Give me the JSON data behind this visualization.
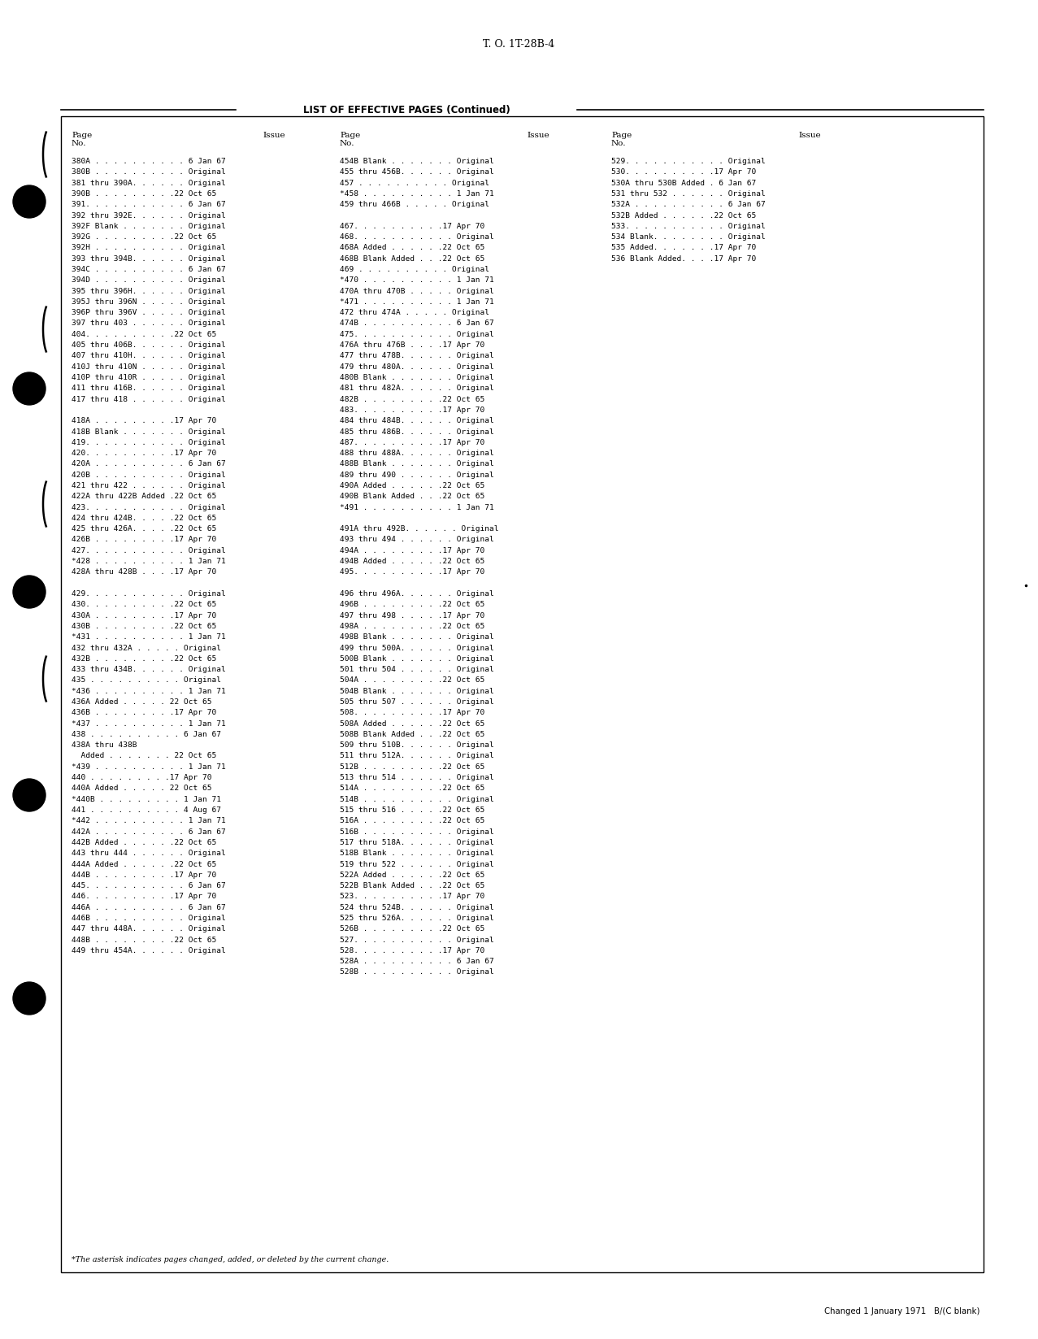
{
  "title_top": "T. O. 1T-28B-4",
  "section_title": "LIST OF EFFECTIVE PAGES (Continued)",
  "footnote": "*The asterisk indicates pages changed, added, or deleted by the current change.",
  "footer": "Changed 1 January 1971   B/(C blank)",
  "col1": [
    "380A . . . . . . . . . . 6 Jan 67",
    "380B . . . . . . . . . . Original",
    "381 thru 390A. . . . . . Original",
    "390B . . . . . . . . .22 Oct 65",
    "391. . . . . . . . . . . 6 Jan 67",
    "392 thru 392E. . . . . . Original",
    "392F Blank . . . . . . . Original",
    "392G . . . . . . . . .22 Oct 65",
    "392H . . . . . . . . . . Original",
    "393 thru 394B. . . . . . Original",
    "394C . . . . . . . . . . 6 Jan 67",
    "394D . . . . . . . . . . Original",
    "395 thru 396H. . . . . . Original",
    "395J thru 396N . . . . . Original",
    "396P thru 396V . . . . . Original",
    "397 thru 403 . . . . . . Original",
    "404. . . . . . . . . .22 Oct 65",
    "405 thru 406B. . . . . . Original",
    "407 thru 410H. . . . . . Original",
    "410J thru 410N . . . . . Original",
    "410P thru 410R . . . . . Original",
    "411 thru 416B. . . . . . Original",
    "417 thru 418 . . . . . . Original",
    "",
    "418A . . . . . . . . .17 Apr 70",
    "418B Blank . . . . . . . Original",
    "419. . . . . . . . . . . Original",
    "420. . . . . . . . . .17 Apr 70",
    "420A . . . . . . . . . . 6 Jan 67",
    "420B . . . . . . . . . . Original",
    "421 thru 422 . . . . . . Original",
    "422A thru 422B Added .22 Oct 65",
    "423. . . . . . . . . . . Original",
    "424 thru 424B. . . . .22 Oct 65",
    "425 thru 426A. . . . .22 Oct 65",
    "426B . . . . . . . . .17 Apr 70",
    "427. . . . . . . . . . . Original",
    "*428 . . . . . . . . . . 1 Jan 71",
    "428A thru 428B . . . .17 Apr 70",
    "",
    "429. . . . . . . . . . . Original",
    "430. . . . . . . . . .22 Oct 65",
    "430A . . . . . . . . .17 Apr 70",
    "430B . . . . . . . . .22 Oct 65",
    "*431 . . . . . . . . . . 1 Jan 71",
    "432 thru 432A . . . . . Original",
    "432B . . . . . . . . .22 Oct 65",
    "433 thru 434B. . . . . . Original",
    "435 . . . . . . . . . . Original",
    "*436 . . . . . . . . . . 1 Jan 71",
    "436A Added . . . . . 22 Oct 65",
    "436B . . . . . . . . .17 Apr 70",
    "*437 . . . . . . . . . . 1 Jan 71",
    "438 . . . . . . . . . . 6 Jan 67",
    "438A thru 438B",
    "  Added . . . . . . . 22 Oct 65",
    "*439 . . . . . . . . . . 1 Jan 71",
    "440 . . . . . . . . .17 Apr 70",
    "440A Added . . . . . 22 Oct 65",
    "*440B . . . . . . . . . 1 Jan 71",
    "441 . . . . . . . . . . 4 Aug 67",
    "*442 . . . . . . . . . . 1 Jan 71",
    "442A . . . . . . . . . . 6 Jan 67",
    "442B Added . . . . . .22 Oct 65",
    "443 thru 444 . . . . . . Original",
    "444A Added . . . . . .22 Oct 65",
    "444B . . . . . . . . .17 Apr 70",
    "445. . . . . . . . . . . 6 Jan 67",
    "446. . . . . . . . . .17 Apr 70",
    "446A . . . . . . . . . . 6 Jan 67",
    "446B . . . . . . . . . . Original",
    "447 thru 448A. . . . . . Original",
    "448B . . . . . . . . .22 Oct 65",
    "449 thru 454A. . . . . . Original"
  ],
  "col2": [
    "454B Blank . . . . . . . Original",
    "455 thru 456B. . . . . . Original",
    "457 . . . . . . . . . . Original",
    "*458 . . . . . . . . . . 1 Jan 71",
    "459 thru 466B . . . . . Original",
    "",
    "467. . . . . . . . . .17 Apr 70",
    "468. . . . . . . . . . . Original",
    "468A Added . . . . . .22 Oct 65",
    "468B Blank Added . . .22 Oct 65",
    "469 . . . . . . . . . . Original",
    "*470 . . . . . . . . . . 1 Jan 71",
    "470A thru 470B . . . . . Original",
    "*471 . . . . . . . . . . 1 Jan 71",
    "472 thru 474A . . . . . Original",
    "474B . . . . . . . . . . 6 Jan 67",
    "475. . . . . . . . . . . Original",
    "476A thru 476B . . . .17 Apr 70",
    "477 thru 478B. . . . . . Original",
    "479 thru 480A. . . . . . Original",
    "480B Blank . . . . . . . Original",
    "481 thru 482A. . . . . . Original",
    "482B . . . . . . . . .22 Oct 65",
    "483. . . . . . . . . .17 Apr 70",
    "484 thru 484B. . . . . . Original",
    "485 thru 486B. . . . . . Original",
    "487. . . . . . . . . .17 Apr 70",
    "488 thru 488A. . . . . . Original",
    "488B Blank . . . . . . . Original",
    "489 thru 490 . . . . . . Original",
    "490A Added . . . . . .22 Oct 65",
    "490B Blank Added . . .22 Oct 65",
    "*491 . . . . . . . . . . 1 Jan 71",
    "",
    "491A thru 492B. . . . . . Original",
    "493 thru 494 . . . . . . Original",
    "494A . . . . . . . . .17 Apr 70",
    "494B Added . . . . . .22 Oct 65",
    "495. . . . . . . . . .17 Apr 70",
    "",
    "496 thru 496A. . . . . . Original",
    "496B . . . . . . . . .22 Oct 65",
    "497 thru 498 . . . . .17 Apr 70",
    "498A . . . . . . . . .22 Oct 65",
    "498B Blank . . . . . . . Original",
    "499 thru 500A. . . . . . Original",
    "500B Blank . . . . . . . Original",
    "501 thru 504 . . . . . . Original",
    "504A . . . . . . . . .22 Oct 65",
    "504B Blank . . . . . . . Original",
    "505 thru 507 . . . . . . Original",
    "508. . . . . . . . . .17 Apr 70",
    "508A Added . . . . . .22 Oct 65",
    "508B Blank Added . . .22 Oct 65",
    "509 thru 510B. . . . . . Original",
    "511 thru 512A. . . . . . Original",
    "512B . . . . . . . . .22 Oct 65",
    "513 thru 514 . . . . . . Original",
    "514A . . . . . . . . .22 Oct 65",
    "514B . . . . . . . . . . Original",
    "515 thru 516 . . . . .22 Oct 65",
    "516A . . . . . . . . .22 Oct 65",
    "516B . . . . . . . . . . Original",
    "517 thru 518A. . . . . . Original",
    "518B Blank . . . . . . . Original",
    "519 thru 522 . . . . . . Original",
    "522A Added . . . . . .22 Oct 65",
    "522B Blank Added . . .22 Oct 65",
    "523. . . . . . . . . .17 Apr 70",
    "524 thru 524B. . . . . . Original",
    "525 thru 526A. . . . . . Original",
    "526B . . . . . . . . .22 Oct 65",
    "527. . . . . . . . . . . Original",
    "528. . . . . . . . . .17 Apr 70",
    "528A . . . . . . . . . . 6 Jan 67",
    "528B . . . . . . . . . . Original"
  ],
  "col3": [
    "529. . . . . . . . . . . Original",
    "530. . . . . . . . . .17 Apr 70",
    "530A thru 530B Added . 6 Jan 67",
    "531 thru 532 . . . . . . Original",
    "532A . . . . . . . . . . 6 Jan 67",
    "532B Added . . . . . .22 Oct 65",
    "533. . . . . . . . . . . Original",
    "534 Blank. . . . . . . . Original",
    "535 Added. . . . . . .17 Apr 70",
    "536 Blank Added. . . .17 Apr 70"
  ],
  "bg_color": "#ffffff",
  "text_color": "#000000",
  "border_color": "#000000",
  "font_size": 6.8,
  "header_font_size": 7.5,
  "title_font_size": 9.0,
  "section_title_fontsize": 8.5
}
